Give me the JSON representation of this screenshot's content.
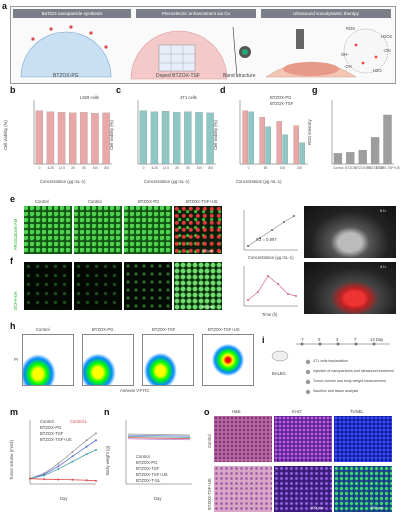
{
  "panel_labels": [
    "a",
    "b",
    "c",
    "d",
    "e",
    "f",
    "g",
    "h",
    "i",
    "j",
    "k",
    "l",
    "m",
    "n",
    "o"
  ],
  "a": {
    "banners": [
      "BaTiO3 nanoparticle synthesis",
      "Piezoelectric enhancement via Cu",
      "Ultrasound sonodynamic therapy"
    ],
    "captions": [
      "BTZOX-PG",
      "Doped BTZOX-TSF",
      "Band structure"
    ],
    "ions": [
      "ROS",
      "H2O2",
      "·OH",
      "OH-",
      "·OH",
      "H2O"
    ]
  },
  "charts": {
    "b_title": "L929 cells",
    "b_xlabel": "Concentration (μg mL-1)",
    "b_ylabel": "Cell viability (%)",
    "c_title": "4T1 cells",
    "c_xlabel": "Concentration (μg mL-1)",
    "c_ylabel": "Cell viability (%)",
    "d_legend": [
      "BTZOX-PG",
      "BTZOX-TSF"
    ],
    "d_xlabel": "Concentration (μg mL-1)",
    "d_ylabel": "Cell viability (%)",
    "g_ylabel": "ROS intensity",
    "g_xticks": [
      "Control",
      "BTZOX",
      "BTZOX-PG",
      "BTZOX-TSF",
      "BTZOX-TSF+US"
    ],
    "h_gates": [
      "Control",
      "BTZOX-PG",
      "BTZOX-TSF",
      "BTZOX-TSF+US"
    ],
    "h_xlabel": "Annexin V-FITC",
    "h_ylabel": "PI",
    "m_legend": [
      "Control",
      "BTZOX-PG",
      "BTZOX-TSF",
      "BTZOX-TSF+US",
      "Control-L"
    ],
    "m_xlabel": "Day",
    "m_ylabel": "Tumor volume (mm3)",
    "n_legend": [
      "Control",
      "BTZOX-PG",
      "BTZOX-TSF",
      "BTZOX-TSF+US",
      "BTZOX-T-SL"
    ],
    "n_xlabel": "Day",
    "n_ylabel": "Body weight (g)"
  },
  "e": {
    "columns": [
      "Control",
      "Control",
      "BTZOX-PG",
      "BTZOX-TSF+US"
    ],
    "row_label": "FRG/Calcein AM",
    "scale": "50 μm"
  },
  "f": {
    "row_label": "DCFH-DA",
    "scale": "50 μm"
  },
  "e2": {
    "ylabel": "Viability (%)",
    "xlabel": "Concentration (μg mL-1)",
    "note": "R2 = 0.997"
  },
  "f2": {
    "ylabel": "Viability (%)",
    "xlabel": "Time (h)"
  },
  "ultrasound": {
    "t1": "0 h",
    "t2": "4 h"
  },
  "i": {
    "days": [
      "-7",
      "0",
      "3",
      "7",
      "14 Day"
    ],
    "steps": [
      "4T1 cells implantation",
      "Injection of nanoparticles and ultrasound treatment",
      "Tumor volume and body weight measurement",
      "Sacrifice and tissue analysis"
    ],
    "mouse_label": "BALB/c"
  },
  "o": {
    "columns": [
      "H&E",
      "Ki-67",
      "TUNEL"
    ],
    "rows": [
      "Control",
      "BTZOX-TSF+US"
    ],
    "scale": "100 μm"
  },
  "colors": {
    "bar_pink": "#e8a8a8",
    "bar_teal": "#8ec7c4",
    "green": "#3cc43c",
    "red": "#e33b3b",
    "he_pink": "#c06a9a",
    "ki_purple": "#7a3fc8",
    "tunel_blue": "#2a3fd8",
    "tunel_green": "#2faa50"
  },
  "chart_data": [
    {
      "type": "bar",
      "title": "L929 cells",
      "categories": [
        "0",
        "6.25",
        "12.5",
        "25",
        "50",
        "100",
        "200"
      ],
      "values": [
        100,
        98,
        97,
        96,
        97,
        95,
        96
      ],
      "ylim": [
        0,
        120
      ]
    },
    {
      "type": "bar",
      "title": "4T1 cells",
      "categories": [
        "0",
        "6.25",
        "12.5",
        "25",
        "50",
        "100",
        "200"
      ],
      "values": [
        100,
        98,
        99,
        97,
        98,
        97,
        96
      ],
      "ylim": [
        0,
        120
      ]
    },
    {
      "type": "bar",
      "categories": [
        "0",
        "50",
        "100",
        "200"
      ],
      "series": [
        {
          "name": "BTZOX-PG",
          "values": [
            100,
            88,
            80,
            72
          ]
        },
        {
          "name": "BTZOX-TSF",
          "values": [
            98,
            70,
            55,
            40
          ]
        }
      ],
      "ylim": [
        0,
        120
      ]
    },
    {
      "type": "bar",
      "categories": [
        "Control",
        "BTZOX",
        "BTZOX-PG",
        "BTZOX-TSF",
        "BTZOX-TSF+US"
      ],
      "values": [
        1,
        1.1,
        1.3,
        2.5,
        4.6
      ],
      "ylim": [
        0,
        6
      ]
    },
    {
      "type": "line",
      "x": [
        0,
        3,
        6,
        9,
        12,
        14
      ],
      "series": [
        {
          "name": "Control",
          "values": [
            100,
            200,
            380,
            600,
            820,
            950
          ]
        },
        {
          "name": "BTZOX-PG",
          "values": [
            100,
            180,
            330,
            520,
            700,
            820
          ]
        },
        {
          "name": "BTZOX-TSF",
          "values": [
            100,
            160,
            280,
            420,
            560,
            640
          ]
        },
        {
          "name": "BTZOX-TSF+US",
          "values": [
            100,
            90,
            85,
            80,
            70,
            60
          ]
        }
      ],
      "ylim": [
        0,
        1200
      ]
    }
  ]
}
